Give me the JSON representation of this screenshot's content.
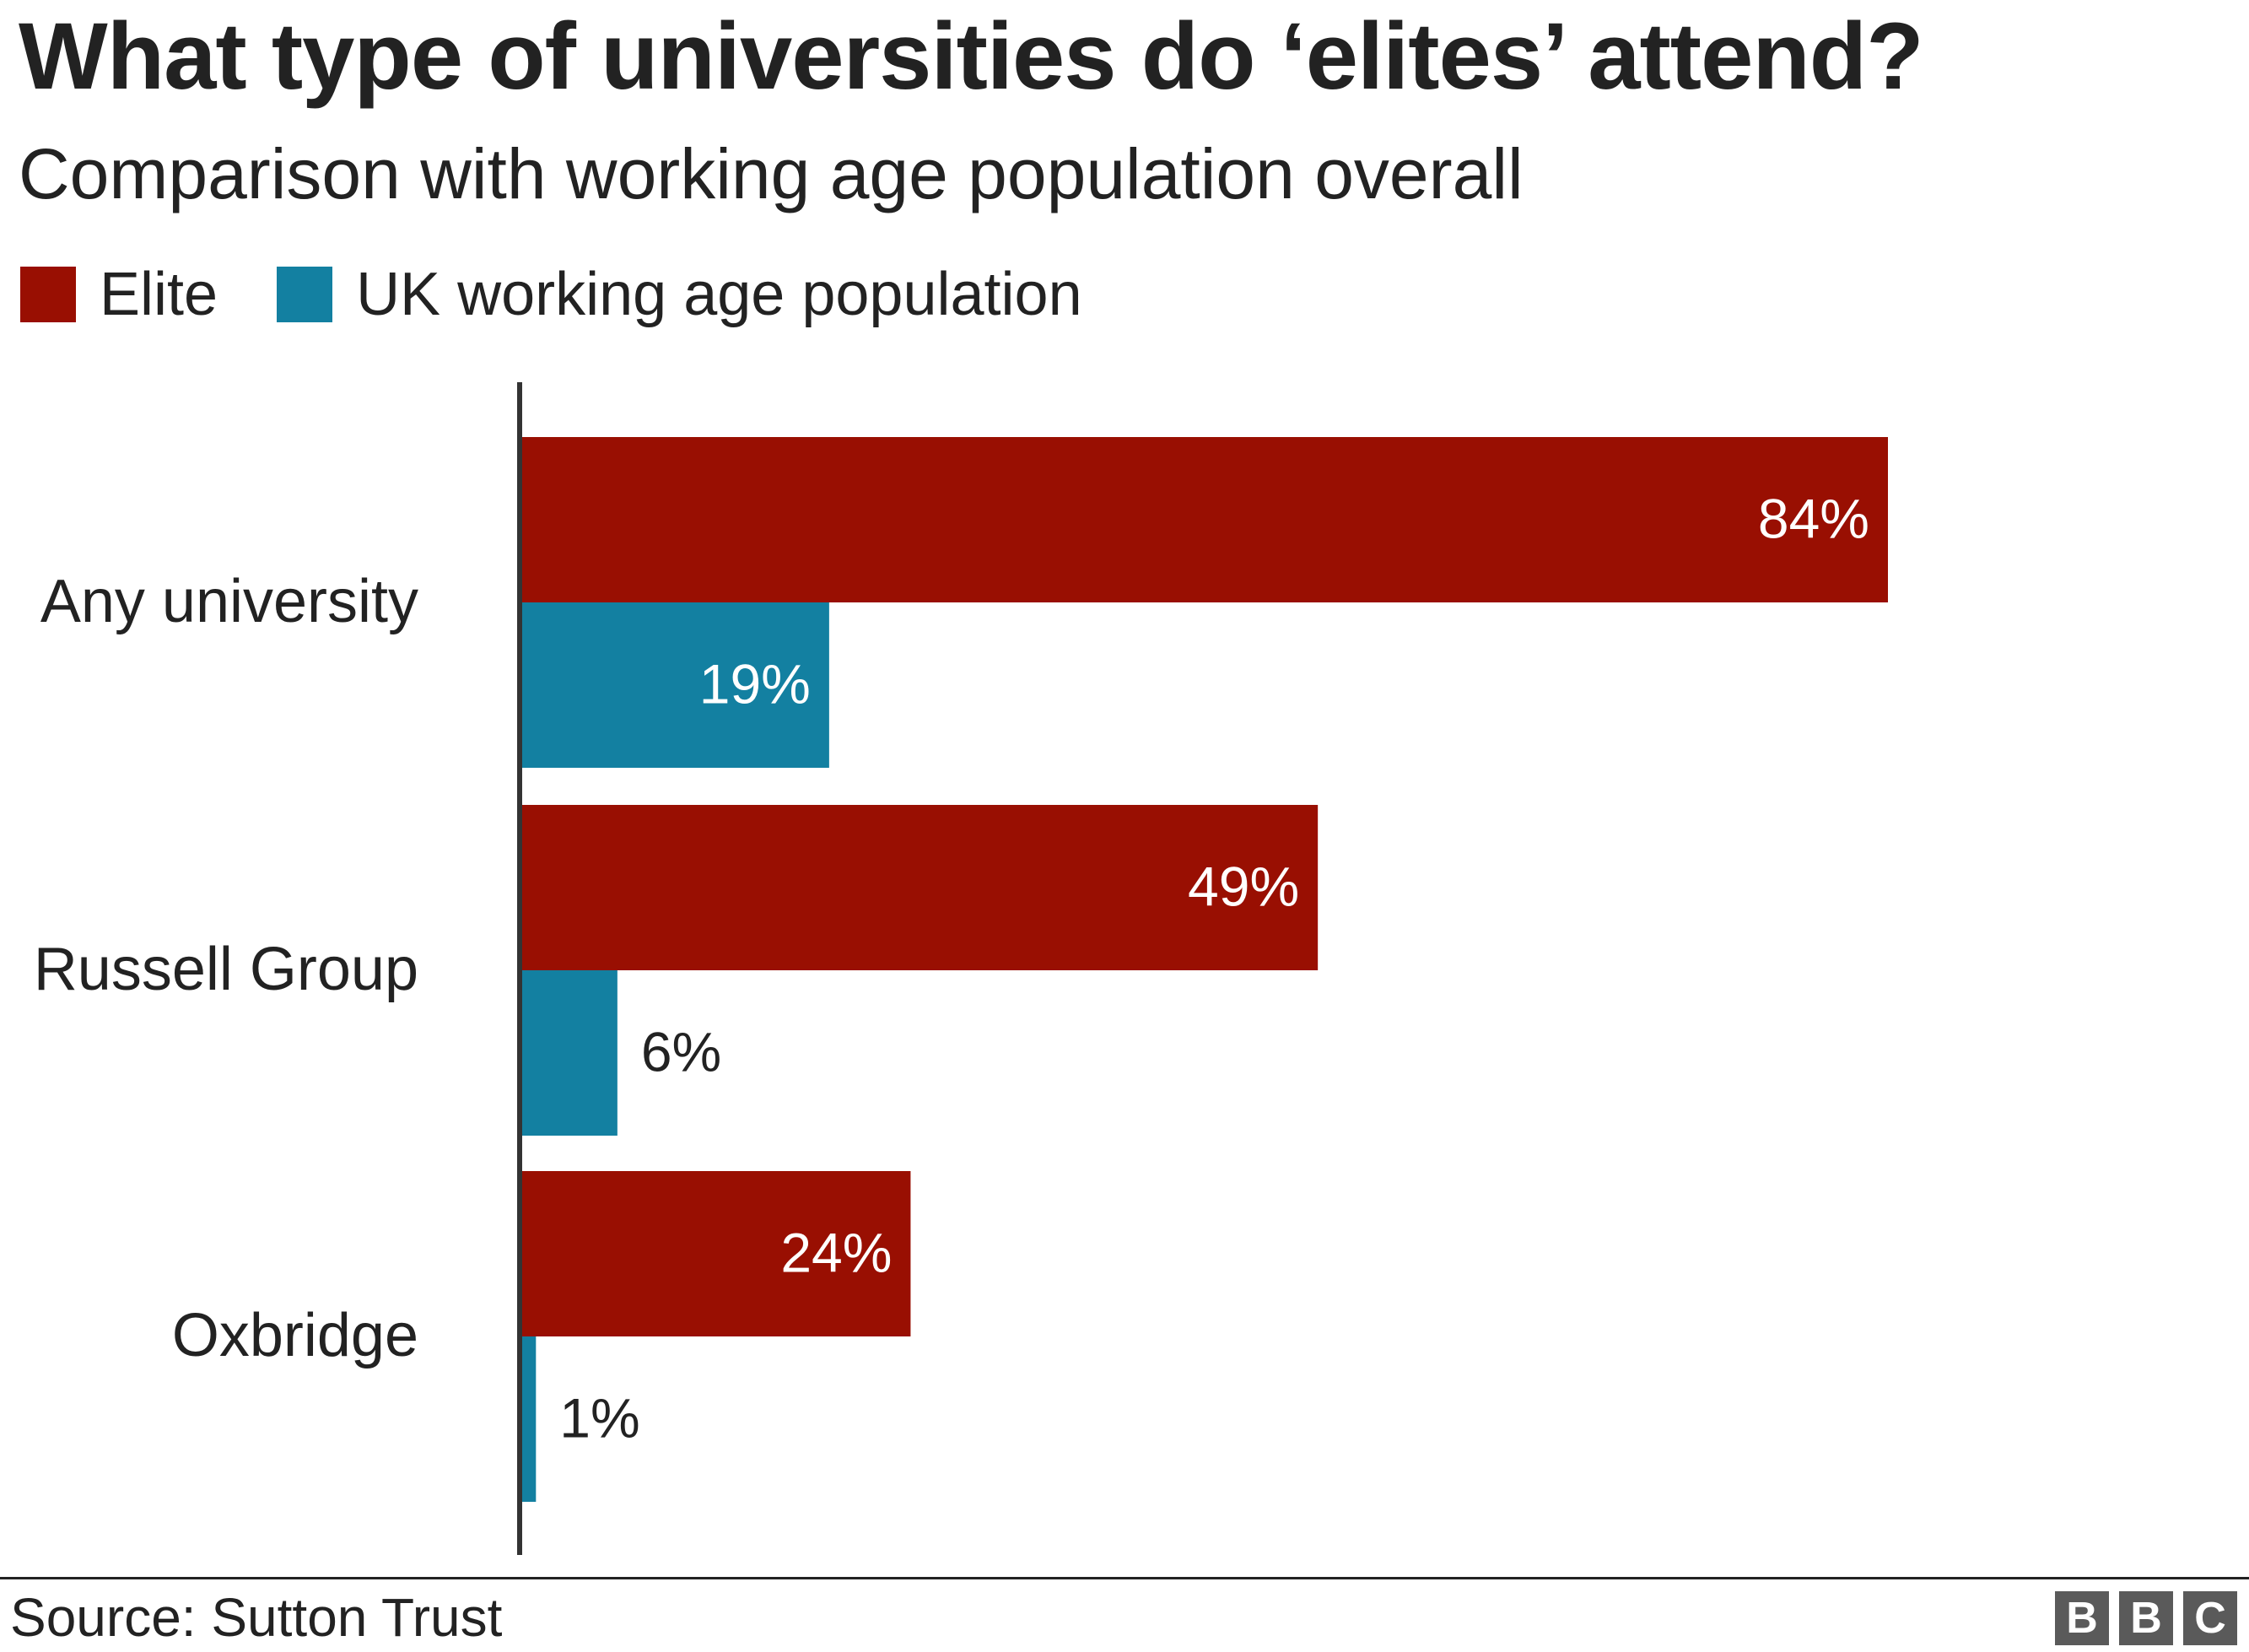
{
  "title": "What type of universities do ‘elites’ attend?",
  "subtitle": "Comparison with working age population overall",
  "legend": [
    {
      "label": "Elite",
      "color": "#990f02"
    },
    {
      "label": "UK working age population",
      "color": "#1380a1"
    }
  ],
  "footer": {
    "source": "Source: Sutton Trust",
    "logo_letters": [
      "B",
      "B",
      "C"
    ]
  },
  "chart_data": {
    "type": "bar",
    "orientation": "horizontal",
    "categories": [
      "Any university",
      "Russell Group",
      "Oxbridge"
    ],
    "series": [
      {
        "name": "Elite",
        "color": "#990f02",
        "values": [
          84,
          49,
          24
        ],
        "labels": [
          "84%",
          "49%",
          "24%"
        ]
      },
      {
        "name": "UK working age population",
        "color": "#1380a1",
        "values": [
          19,
          6,
          1
        ],
        "labels": [
          "19%",
          "6%",
          "1%"
        ]
      }
    ],
    "unit": "%",
    "xlim": [
      0,
      100
    ],
    "grid": false,
    "legend_position": "top-left"
  }
}
